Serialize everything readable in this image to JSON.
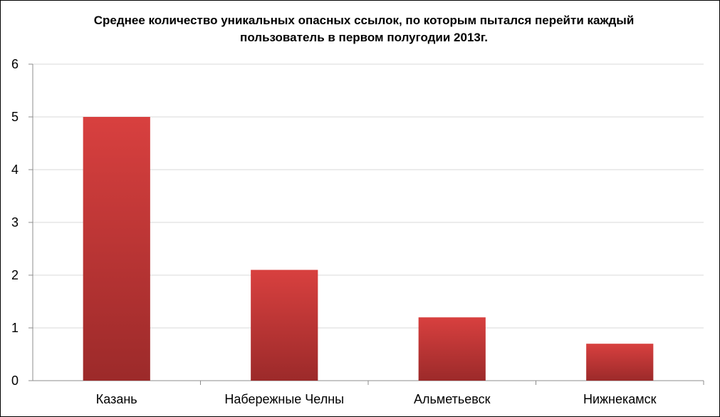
{
  "chart_data": {
    "type": "bar",
    "title_lines": [
      "Среднее количество уникальных опасных ссылок, по которым пытался перейти каждый",
      "пользователь в первом полугодии 2013г."
    ],
    "categories": [
      "Казань",
      "Набережные Челны",
      "Альметьевск",
      "Нижнекамск"
    ],
    "values": [
      5,
      2.1,
      1.2,
      0.7
    ],
    "xlabel": "",
    "ylabel": "",
    "ylim": [
      0,
      6
    ],
    "yticks": [
      "0",
      "1",
      "2",
      "3",
      "4",
      "5",
      "6"
    ],
    "grid": true,
    "legend": "none",
    "colors": {
      "bar_top": "#d8403f",
      "bar_bottom": "#9c2a2a",
      "grid": "#d9d9d9",
      "axis": "#8c8c8c"
    }
  }
}
